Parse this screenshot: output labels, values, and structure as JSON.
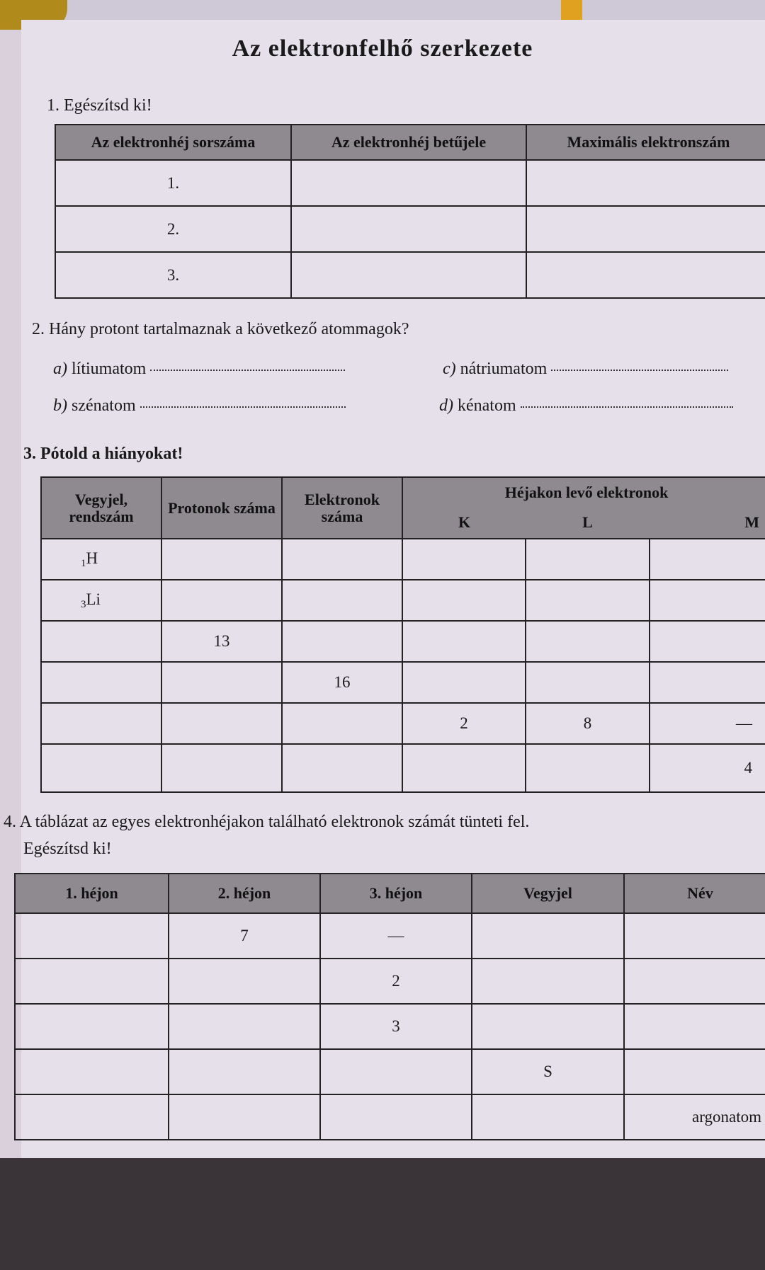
{
  "title": "Az elektronfelhő szerkezete",
  "task1": {
    "heading": "1. Egészítsd ki!",
    "headers": [
      "Az elektronhéj sorszáma",
      "Az elektronhéj betűjele",
      "Maximális elektronszám"
    ],
    "rows": [
      [
        "1.",
        "",
        ""
      ],
      [
        "2.",
        "",
        ""
      ],
      [
        "3.",
        "",
        ""
      ]
    ]
  },
  "task2": {
    "heading": "2. Hány protont tartalmaznak a következő atommagok?",
    "items": [
      {
        "letter": "a)",
        "label": "lítiumatom"
      },
      {
        "letter": "c)",
        "label": "nátriumatom"
      },
      {
        "letter": "b)",
        "label": "szénatom"
      },
      {
        "letter": "d)",
        "label": "kénatom"
      }
    ]
  },
  "task3": {
    "heading": "3. Pótold a hiányokat!",
    "headers": {
      "symbol": "Vegyjel, rendszám",
      "protons": "Protonok száma",
      "electrons": "Elektronok száma",
      "shells": "Héjakon levő elektronok",
      "k": "K",
      "l": "L",
      "m": "M"
    },
    "rows": [
      {
        "num": "1",
        "sym": "H",
        "p": "",
        "e": "",
        "k": "",
        "l": "",
        "m": ""
      },
      {
        "num": "3",
        "sym": "Li",
        "p": "",
        "e": "",
        "k": "",
        "l": "",
        "m": ""
      },
      {
        "num": "",
        "sym": "",
        "p": "13",
        "e": "",
        "k": "",
        "l": "",
        "m": ""
      },
      {
        "num": "",
        "sym": "",
        "p": "",
        "e": "16",
        "k": "",
        "l": "",
        "m": ""
      },
      {
        "num": "",
        "sym": "",
        "p": "",
        "e": "",
        "k": "2",
        "l": "8",
        "m": "—"
      },
      {
        "num": "",
        "sym": "",
        "p": "",
        "e": "",
        "k": "",
        "l": "",
        "m": "4"
      }
    ]
  },
  "task4": {
    "heading": "4. A táblázat az egyes elektronhéjakon található elektronok számát tünteti fel.",
    "subheading": "Egészítsd ki!",
    "headers": [
      "1. héjon",
      "2. héjon",
      "3. héjon",
      "Vegyjel",
      "Név"
    ],
    "rows": [
      [
        "",
        "7",
        "—",
        "",
        ""
      ],
      [
        "",
        "",
        "2",
        "",
        ""
      ],
      [
        "",
        "",
        "3",
        "",
        ""
      ],
      [
        "",
        "",
        "",
        "S",
        ""
      ],
      [
        "",
        "",
        "",
        "",
        "argonatom"
      ]
    ]
  }
}
